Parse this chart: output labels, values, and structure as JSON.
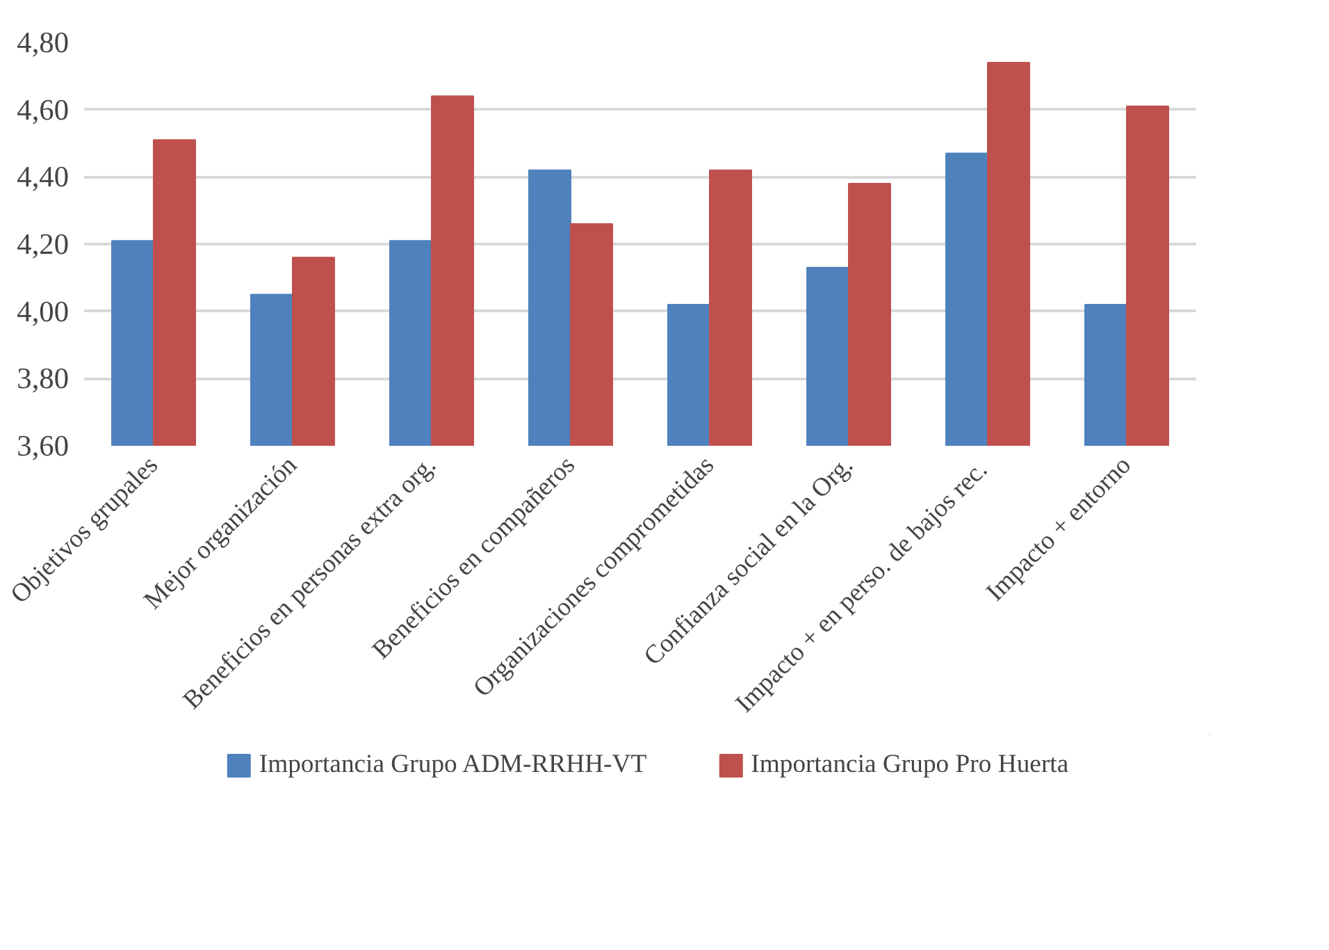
{
  "chart_data": {
    "type": "bar",
    "categories": [
      "Objetivos grupales",
      "Mejor organización",
      "Beneficios en personas extra org.",
      "Beneficios en compañeros",
      "Organizaciones comprometidas",
      "Confianza social en la Org.",
      "Impacto +  en perso. de bajos rec.",
      "Impacto + entorno"
    ],
    "series": [
      {
        "name": "Importancia Grupo ADM-RRHH-VT",
        "color": "#4f81bd",
        "values": [
          4.21,
          4.05,
          4.21,
          4.42,
          4.02,
          4.13,
          4.47,
          4.02
        ]
      },
      {
        "name": "Importancia Grupo Pro Huerta",
        "color": "#c0504d",
        "values": [
          4.51,
          4.16,
          4.64,
          4.26,
          4.42,
          4.38,
          4.74,
          4.61
        ]
      }
    ],
    "ylim": [
      3.6,
      4.8
    ],
    "yticks": [
      {
        "value": 3.6,
        "label": "3,60"
      },
      {
        "value": 3.8,
        "label": "3,80"
      },
      {
        "value": 4.0,
        "label": "4,00"
      },
      {
        "value": 4.2,
        "label": "4,20"
      },
      {
        "value": 4.4,
        "label": "4,40"
      },
      {
        "value": 4.6,
        "label": "4,60"
      },
      {
        "value": 4.8,
        "label": "4,80"
      }
    ],
    "grid": "y",
    "legend": "bottom"
  }
}
